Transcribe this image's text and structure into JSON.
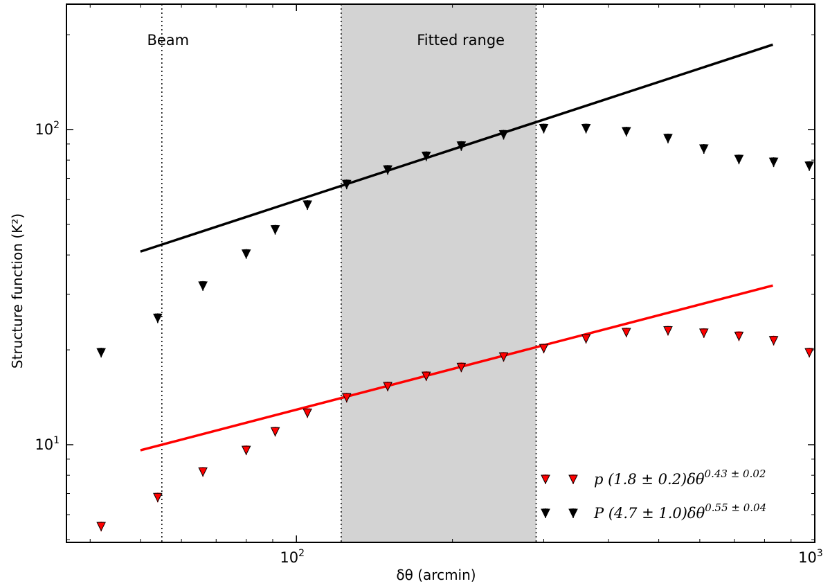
{
  "chart_data": {
    "type": "scatter",
    "xscale": "log",
    "yscale": "log",
    "xlim": [
      36,
      1000
    ],
    "ylim": [
      4.9,
      250
    ],
    "xlabel": "δθ (arcmin)",
    "ylabel": "Structure function (K²)",
    "x_ticks": [
      {
        "base": "10",
        "exp": "2",
        "value": 100
      },
      {
        "base": "10",
        "exp": "3",
        "value": 1000
      }
    ],
    "y_ticks": [
      {
        "base": "10",
        "exp": "1",
        "value": 10
      },
      {
        "base": "10",
        "exp": "2",
        "value": 100
      }
    ],
    "shaded_region": {
      "label": "Fitted range",
      "x": [
        122,
        290
      ],
      "color": "#d3d3d3"
    },
    "vertical_lines": [
      {
        "label": "Beam",
        "x": 55
      }
    ],
    "series": [
      {
        "name": "p (1.8 ± 0.2)δθ^0.43 ± 0.02",
        "legend_main": "p (1.8 ± 0.2)δθ",
        "legend_exp": "0.43 ± 0.02",
        "color": "#ff0000",
        "marker": "triangle-down",
        "x": [
          42,
          54,
          66,
          80,
          91,
          105,
          125,
          150,
          178,
          208,
          251,
          300,
          362,
          433,
          521,
          611,
          714,
          833,
          976
        ],
        "y": [
          5.5,
          6.8,
          8.2,
          9.6,
          11.0,
          12.6,
          14.1,
          15.3,
          16.5,
          17.6,
          19.0,
          20.2,
          21.7,
          22.7,
          23.0,
          22.6,
          22.1,
          21.4,
          19.6
        ],
        "fit": {
          "x": [
            50,
            830
          ],
          "y": [
            9.6,
            32
          ]
        }
      },
      {
        "name": "P (4.7 ± 1.0)δθ^0.55 ± 0.04",
        "legend_main": "P (4.7 ± 1.0)δθ",
        "legend_exp": "0.55 ± 0.04",
        "color": "#000000",
        "marker": "triangle-down",
        "x": [
          42,
          54,
          66,
          80,
          91,
          105,
          125,
          150,
          178,
          208,
          251,
          300,
          362,
          433,
          521,
          611,
          714,
          833,
          976
        ],
        "y": [
          19.6,
          25.2,
          31.9,
          40.3,
          48.1,
          57.6,
          67.0,
          74.5,
          82.3,
          88.7,
          96.3,
          100.8,
          100.8,
          98.5,
          93.7,
          86.8,
          80.4,
          78.8,
          76.6
        ],
        "fit": {
          "x": [
            50,
            830
          ],
          "y": [
            41,
            186
          ]
        }
      }
    ],
    "legend_position": "lower-right"
  }
}
